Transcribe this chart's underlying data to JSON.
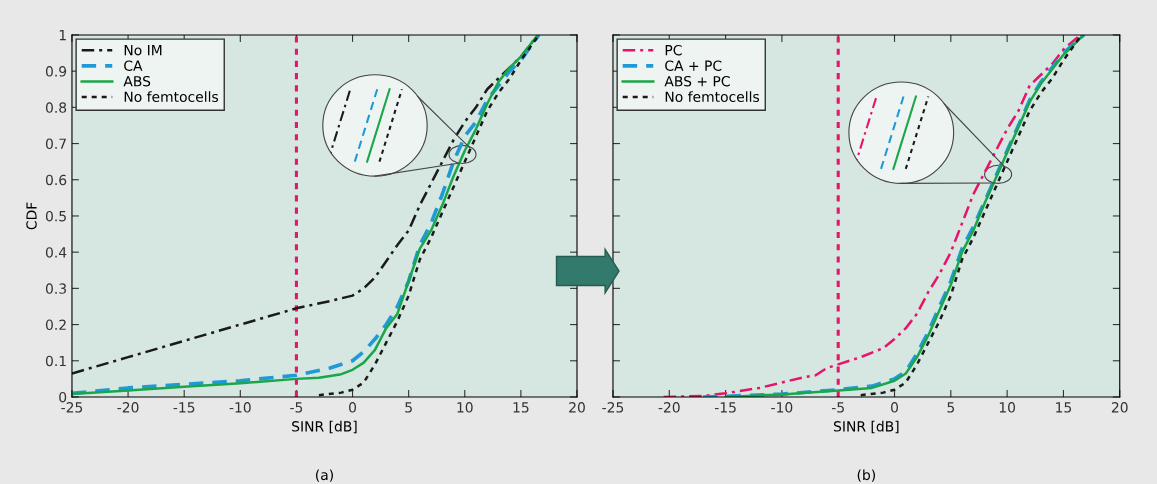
{
  "chart_data": [
    {
      "type": "line",
      "xlabel": "SINR [dB]",
      "ylabel": "CDF",
      "annotations": [
        "(a)"
      ],
      "xlim": [
        -25,
        20
      ],
      "ylim": [
        0,
        1
      ],
      "xticks": [
        -25,
        -20,
        -15,
        -10,
        -5,
        0,
        5,
        10,
        15,
        20
      ],
      "yticks": [
        0,
        0.1,
        0.2,
        0.3,
        0.4,
        0.5,
        0.6,
        0.7,
        0.8,
        0.9,
        1
      ],
      "grid": false,
      "legend": "top left",
      "ref_lines": [
        {
          "axis": "x",
          "value": -5,
          "color": "#e8136b",
          "line_style": "dotted"
        }
      ],
      "series": [
        {
          "name": "No IM",
          "color": "#1a1a1a",
          "line_style": "dashdot",
          "x": [
            -25,
            -20,
            -15,
            -10,
            -5,
            -2,
            0,
            1,
            2,
            3,
            4,
            5,
            6,
            7,
            8,
            9,
            10,
            11,
            12,
            13,
            14,
            15,
            16,
            16.6
          ],
          "values": [
            0.065,
            0.11,
            0.155,
            0.2,
            0.245,
            0.265,
            0.28,
            0.3,
            0.33,
            0.375,
            0.42,
            0.46,
            0.53,
            0.59,
            0.65,
            0.71,
            0.76,
            0.8,
            0.85,
            0.88,
            0.91,
            0.94,
            0.98,
            1.0
          ]
        },
        {
          "name": "CA",
          "color": "#1f9ad6",
          "line_style": "dashed",
          "x": [
            -25,
            -20,
            -15,
            -10,
            -5,
            -2,
            0,
            1,
            2,
            3,
            4,
            5,
            6,
            7,
            8,
            9,
            10,
            11,
            12,
            13,
            14,
            15,
            16.6
          ],
          "values": [
            0.01,
            0.025,
            0.035,
            0.045,
            0.06,
            0.08,
            0.1,
            0.125,
            0.16,
            0.2,
            0.25,
            0.32,
            0.42,
            0.48,
            0.56,
            0.65,
            0.72,
            0.76,
            0.82,
            0.86,
            0.9,
            0.93,
            1.0
          ]
        },
        {
          "name": "ABS",
          "color": "#1aa64a",
          "line_style": "solid",
          "x": [
            -25,
            -20,
            -15,
            -10,
            -5,
            -3,
            -1,
            0,
            1,
            2,
            3,
            4,
            5,
            6,
            7,
            8,
            9,
            10,
            11,
            12,
            13,
            14,
            15,
            16.5
          ],
          "values": [
            0.008,
            0.018,
            0.028,
            0.038,
            0.05,
            0.053,
            0.063,
            0.075,
            0.095,
            0.13,
            0.19,
            0.23,
            0.32,
            0.41,
            0.46,
            0.53,
            0.61,
            0.68,
            0.74,
            0.81,
            0.87,
            0.91,
            0.94,
            1.0
          ]
        },
        {
          "name": "No femtocells",
          "color": "#1a1a1a",
          "line_style": "dotted",
          "x": [
            -3,
            -1,
            0,
            1,
            2,
            3,
            4,
            5,
            6,
            7,
            8,
            9,
            10,
            11,
            12,
            13,
            14,
            15,
            16.6
          ],
          "values": [
            0.005,
            0.012,
            0.02,
            0.04,
            0.09,
            0.15,
            0.21,
            0.28,
            0.38,
            0.44,
            0.51,
            0.58,
            0.65,
            0.72,
            0.79,
            0.84,
            0.88,
            0.93,
            1.0
          ]
        }
      ]
    },
    {
      "type": "line",
      "xlabel": "SINR [dB]",
      "annotations": [
        "(b)"
      ],
      "xlim": [
        -25,
        20
      ],
      "ylim": [
        0,
        1
      ],
      "xticks": [
        -25,
        -20,
        -15,
        -10,
        -5,
        0,
        5,
        10,
        15,
        20
      ],
      "yticks": [
        0,
        0.1,
        0.2,
        0.3,
        0.4,
        0.5,
        0.6,
        0.7,
        0.8,
        0.9,
        1
      ],
      "tick_labels": "x",
      "grid": false,
      "legend": "top left",
      "ref_lines": [
        {
          "axis": "x",
          "value": -5,
          "color": "#e8136b",
          "line_style": "dotted"
        }
      ],
      "series": [
        {
          "name": "PC",
          "color": "#e8136b",
          "line_style": "dashdot",
          "x": [
            -20.5,
            -17,
            -15,
            -12,
            -10,
            -8,
            -7,
            -6,
            -5,
            -3,
            -1,
            0,
            1,
            2,
            3,
            4,
            5,
            6,
            7,
            8,
            9,
            10,
            11,
            12,
            13,
            14,
            15,
            16.5
          ],
          "values": [
            0,
            0.003,
            0.01,
            0.025,
            0.04,
            0.055,
            0.06,
            0.08,
            0.09,
            0.11,
            0.135,
            0.16,
            0.19,
            0.23,
            0.29,
            0.34,
            0.4,
            0.48,
            0.56,
            0.62,
            0.68,
            0.74,
            0.79,
            0.86,
            0.89,
            0.92,
            0.96,
            1.0
          ]
        },
        {
          "name": "CA + PC",
          "color": "#1f9ad6",
          "line_style": "dashed",
          "x": [
            -17,
            -15,
            -10,
            -5,
            -2,
            0,
            1,
            2,
            3,
            4,
            5,
            6,
            7,
            8,
            9,
            10,
            11,
            12,
            13,
            14,
            15,
            16.8
          ],
          "values": [
            0,
            0.002,
            0.008,
            0.02,
            0.03,
            0.05,
            0.07,
            0.12,
            0.18,
            0.25,
            0.32,
            0.41,
            0.47,
            0.54,
            0.61,
            0.68,
            0.75,
            0.82,
            0.87,
            0.91,
            0.95,
            1.0
          ]
        },
        {
          "name": "ABS + PC",
          "color": "#1aa64a",
          "line_style": "solid",
          "x": [
            -15,
            -10,
            -5,
            -2,
            0,
            1,
            2,
            3,
            4,
            5,
            6,
            7,
            8,
            9,
            10,
            11,
            12,
            13,
            14,
            15,
            16.8
          ],
          "values": [
            0,
            0.007,
            0.018,
            0.025,
            0.045,
            0.065,
            0.11,
            0.17,
            0.24,
            0.31,
            0.4,
            0.46,
            0.535,
            0.605,
            0.675,
            0.745,
            0.815,
            0.865,
            0.905,
            0.945,
            1.0
          ]
        },
        {
          "name": "No femtocells",
          "color": "#1a1a1a",
          "line_style": "dotted",
          "x": [
            -3,
            -1,
            0,
            1,
            2,
            3,
            4,
            5,
            6,
            7,
            8,
            9,
            10,
            11,
            12,
            13,
            14,
            15,
            16.6
          ],
          "values": [
            0.005,
            0.012,
            0.02,
            0.04,
            0.09,
            0.15,
            0.21,
            0.28,
            0.38,
            0.44,
            0.51,
            0.58,
            0.65,
            0.72,
            0.79,
            0.84,
            0.88,
            0.93,
            1.0
          ]
        }
      ]
    }
  ]
}
